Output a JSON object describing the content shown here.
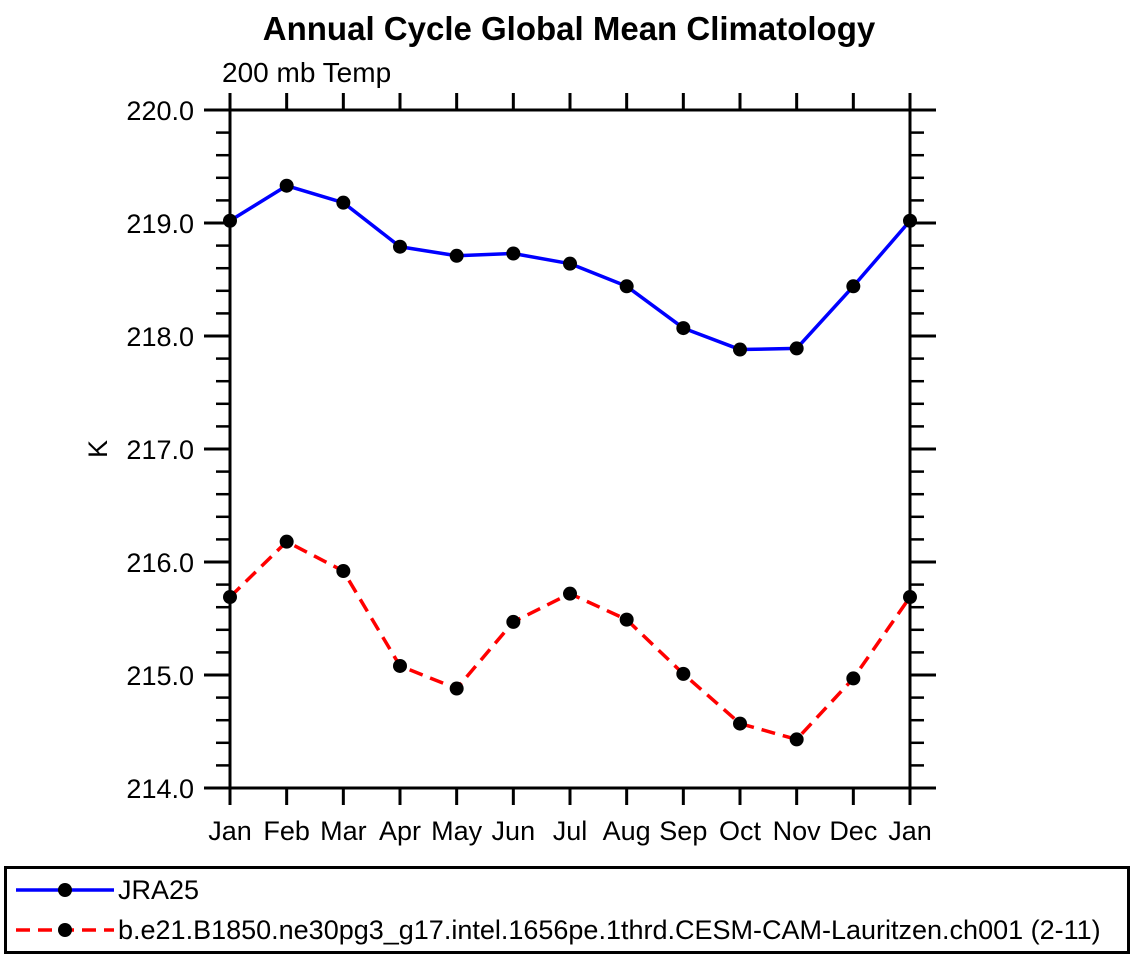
{
  "title": "Annual Cycle Global Mean Climatology",
  "subtitle": "200 mb Temp",
  "chart_data": {
    "type": "line",
    "title": "Annual Cycle Global Mean Climatology",
    "subtitle": "200 mb Temp",
    "xlabel": "",
    "ylabel": "K",
    "categories": [
      "Jan",
      "Feb",
      "Mar",
      "Apr",
      "May",
      "Jun",
      "Jul",
      "Aug",
      "Sep",
      "Oct",
      "Nov",
      "Dec",
      "Jan"
    ],
    "ylim": [
      214.0,
      220.0
    ],
    "ytick_values": [
      214,
      215,
      216,
      217,
      218,
      219,
      220
    ],
    "ytick_labels": [
      "214.0",
      "215.0",
      "216.0",
      "217.0",
      "218.0",
      "219.0",
      "220.0"
    ],
    "ytick_minor_step": 0.2,
    "grid": false,
    "legend_position": "bottom-box",
    "axis_color": "#000000",
    "marker_color": "#000000",
    "series": [
      {
        "name": "JRA25",
        "color": "#0000ff",
        "style": "solid",
        "marker": "filled-circle",
        "values": [
          219.02,
          219.33,
          219.18,
          218.79,
          218.71,
          218.73,
          218.64,
          218.44,
          218.07,
          217.88,
          217.89,
          218.44,
          219.02
        ]
      },
      {
        "name": "b.e21.B1850.ne30pg3_g17.intel.1656pe.1thrd.CESM-CAM-Lauritzen.ch001 (2-11)",
        "color": "#ff0000",
        "style": "dashed",
        "marker": "filled-circle",
        "values": [
          215.69,
          216.18,
          215.92,
          215.08,
          214.88,
          215.47,
          215.72,
          215.49,
          215.01,
          214.57,
          214.43,
          214.97,
          215.69
        ]
      }
    ]
  }
}
